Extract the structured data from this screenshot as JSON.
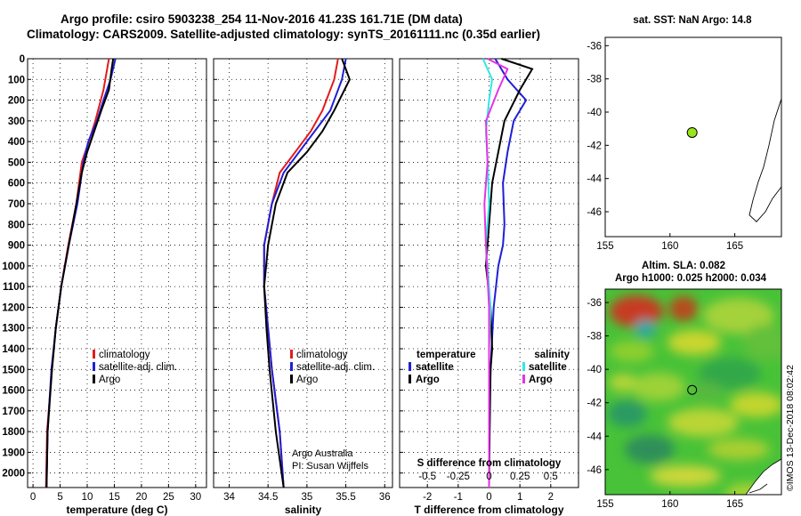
{
  "header": {
    "line1": "Argo profile: csiro 5903238_254 11-Nov-2016 41.23S 161.71E (DM data)",
    "line2": "Climatology: CARS2009. Satellite-adjusted climatology: synTS_20161111.nc (0.35d earlier)"
  },
  "colors": {
    "climatology": "#e41a1c",
    "satellite": "#1f1fd6",
    "argo": "#000000",
    "salinity_diff": "#33e6e6",
    "salinity_sat_diff": "#e633e6",
    "float_marker": "#9be51a"
  },
  "footer": {
    "credit1": "Argo Australia",
    "credit2": "PI: Susan Wijffels",
    "timestamp": "©IMOS 13-Dec-2018 08:02:42"
  },
  "chart_data": [
    {
      "type": "line",
      "id": "temperature",
      "xlabel": "temperature (deg C)",
      "xlim": [
        -1,
        32
      ],
      "xticks": [
        0,
        5,
        10,
        15,
        20,
        25,
        30
      ],
      "ylim": [
        2070,
        0
      ],
      "ytick_labels": [
        "0",
        "100",
        "200",
        "300",
        "400",
        "500",
        "600",
        "700",
        "800",
        "900",
        "1000",
        "1100",
        "1200",
        "1300",
        "1400",
        "1500",
        "1600",
        "1700",
        "1800",
        "1900",
        "2000"
      ],
      "grid": true,
      "legend": [
        "climatology",
        "satellite-adj. clim.",
        "Argo"
      ],
      "series": [
        {
          "name": "climatology",
          "x": [
            14.0,
            13.0,
            11.5,
            10.3,
            9.0,
            8.0,
            6.5,
            5.2,
            4.2,
            3.5,
            2.6,
            2.4
          ],
          "y": [
            0,
            150,
            300,
            400,
            500,
            700,
            900,
            1100,
            1300,
            1500,
            1800,
            2070
          ]
        },
        {
          "name": "satellite-adj. clim.",
          "x": [
            15.2,
            14.3,
            13.0,
            11.8,
            10.2,
            9.3,
            8.2,
            6.6,
            5.2,
            4.2,
            3.4,
            2.7,
            2.5
          ],
          "y": [
            0,
            100,
            200,
            300,
            400,
            500,
            700,
            900,
            1100,
            1300,
            1500,
            1800,
            2070
          ]
        },
        {
          "name": "Argo",
          "x": [
            14.8,
            14.5,
            14.0,
            12.6,
            11.3,
            10.0,
            9.0,
            8.0,
            6.6,
            5.2,
            4.2,
            3.5,
            2.7,
            2.5
          ],
          "y": [
            0,
            50,
            150,
            250,
            350,
            450,
            550,
            700,
            900,
            1100,
            1300,
            1500,
            1800,
            2070
          ]
        }
      ]
    },
    {
      "type": "line",
      "id": "salinity",
      "xlabel": "salinity",
      "xlim": [
        33.8,
        36.1
      ],
      "xticks": [
        34,
        34.5,
        35,
        35.5,
        36
      ],
      "ylim": [
        2070,
        0
      ],
      "grid": true,
      "legend": [
        "climatology",
        "satellite-adj. clim.",
        "Argo"
      ],
      "series": [
        {
          "name": "climatology",
          "x": [
            35.4,
            35.35,
            35.2,
            35.05,
            34.85,
            34.65,
            34.55,
            34.45,
            34.45,
            34.5,
            34.55,
            34.65,
            34.7
          ],
          "y": [
            0,
            100,
            250,
            350,
            450,
            550,
            700,
            900,
            1100,
            1300,
            1500,
            1800,
            2070
          ]
        },
        {
          "name": "satellite-adj. clim.",
          "x": [
            35.5,
            35.45,
            35.3,
            35.1,
            34.9,
            34.7,
            34.55,
            34.45,
            34.45,
            34.5,
            34.55,
            34.65,
            34.7
          ],
          "y": [
            0,
            100,
            250,
            350,
            450,
            550,
            700,
            900,
            1100,
            1300,
            1500,
            1800,
            2070
          ]
        },
        {
          "name": "Argo",
          "x": [
            35.45,
            35.55,
            35.35,
            35.2,
            35.0,
            34.75,
            34.6,
            34.5,
            34.45,
            34.48,
            34.52,
            34.6,
            34.7
          ],
          "y": [
            0,
            100,
            250,
            350,
            450,
            550,
            700,
            900,
            1100,
            1300,
            1500,
            1800,
            2070
          ]
        }
      ]
    },
    {
      "type": "line",
      "id": "difference",
      "xlabel": "T difference from climatology",
      "xlabel_top": "S difference from climatology",
      "xlim": [
        -2.9,
        2.9
      ],
      "xticks": [
        -2,
        -1,
        0,
        1,
        2
      ],
      "xticks_top": [
        -0.5,
        -0.25,
        0,
        0.25,
        0.5
      ],
      "xtick_labels_top": [
        "-0.5",
        "-0.25",
        "0",
        "0.25",
        "0.5"
      ],
      "ylim": [
        2070,
        0
      ],
      "grid": true,
      "legend_left_title": "temperature",
      "legend_right_title": "salinity",
      "legend_left": [
        "satellite",
        "Argo"
      ],
      "legend_right": [
        "satellite",
        "Argo"
      ],
      "series": [
        {
          "name": "temperature satellite",
          "x": [
            0.2,
            0.6,
            1.2,
            0.8,
            0.6,
            0.45,
            0.5,
            0.45,
            0.3,
            0.15,
            0.05,
            0,
            0
          ],
          "y": [
            0,
            100,
            200,
            300,
            450,
            600,
            800,
            900,
            1000,
            1200,
            1500,
            1800,
            2070
          ]
        },
        {
          "name": "temperature Argo",
          "x": [
            0.4,
            1.4,
            1.0,
            0.5,
            0.3,
            0.1,
            0.0,
            -0.1,
            0.05,
            0.1,
            0.05,
            0.02,
            0
          ],
          "y": [
            0,
            50,
            150,
            300,
            450,
            600,
            800,
            1000,
            1200,
            1400,
            1500,
            1800,
            2070
          ]
        },
        {
          "name": "salinity satellite",
          "x": [
            -0.2,
            0.1,
            0.0,
            -0.1,
            -0.05,
            0,
            -0.1,
            0.05,
            0,
            0,
            0
          ],
          "y": [
            0,
            100,
            200,
            350,
            500,
            700,
            900,
            1200,
            1400,
            1800,
            2070
          ]
        },
        {
          "name": "salinity Argo",
          "x": [
            -0.05,
            0.6,
            0.3,
            -0.1,
            -0.05,
            -0.15,
            -0.1,
            0,
            0,
            0
          ],
          "y": [
            0,
            50,
            150,
            300,
            500,
            700,
            900,
            1200,
            1600,
            2070
          ]
        }
      ]
    },
    {
      "type": "scatter",
      "id": "sst_map",
      "title": "sat. SST: NaN Argo: 14.8",
      "xlim": [
        155,
        168.6
      ],
      "xticks": [
        155,
        160,
        165
      ],
      "ylim": [
        -47.5,
        -35.5
      ],
      "yticks": [
        -36,
        -38,
        -40,
        -42,
        -44,
        -46
      ],
      "points": [
        {
          "x": 161.71,
          "y": -41.23
        }
      ]
    },
    {
      "type": "heatmap",
      "id": "sla_map",
      "title_line1": "Altim. SLA: 0.082",
      "title_line2": "Argo h1000: 0.025 h2000: 0.034",
      "xlim": [
        155,
        168.6
      ],
      "xticks": [
        155,
        160,
        165
      ],
      "ylim": [
        -47.5,
        -35.2
      ],
      "yticks": [
        -36,
        -38,
        -40,
        -42,
        -44,
        -46
      ],
      "points": [
        {
          "x": 161.71,
          "y": -41.23
        }
      ]
    }
  ]
}
